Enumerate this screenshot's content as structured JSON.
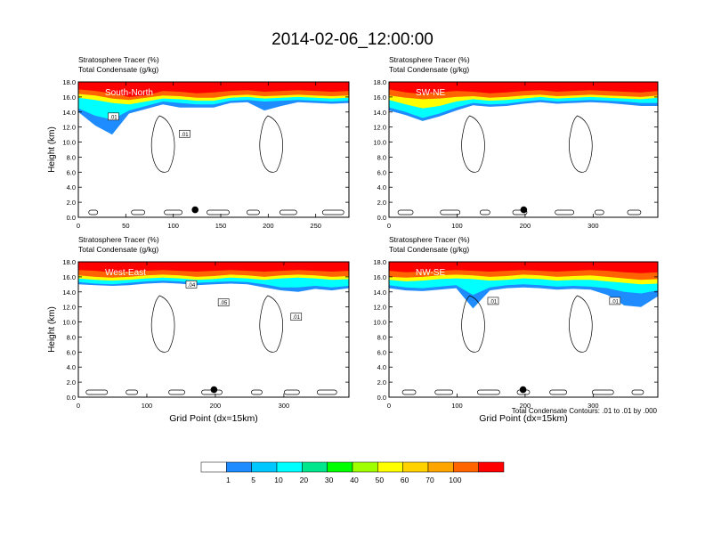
{
  "title": "2014-02-06_12:00:00",
  "subtitle_line1": "Stratosphere Tracer   (%)",
  "subtitle_line2": "Total Condensate   (g/kg)",
  "footnote": "Total Condensate Contours: .01 to .01 by .000",
  "colorbar": {
    "levels": [
      "1",
      "5",
      "10",
      "20",
      "30",
      "40",
      "50",
      "60",
      "70",
      "100"
    ],
    "colors": [
      "#ffffff",
      "#1e8cff",
      "#00c8ff",
      "#00ffff",
      "#00e68c",
      "#00ff00",
      "#a0ff00",
      "#ffff00",
      "#ffd200",
      "#ffa500",
      "#ff6400",
      "#ff0000"
    ]
  },
  "colors": {
    "fill_high": "#ff0000",
    "fill_orange": "#ff6400",
    "fill_yellow": "#ffff00",
    "fill_cyan": "#00ffff",
    "fill_blue": "#1e8cff",
    "contour": "#000000"
  },
  "chart_data": [
    {
      "type": "heatmap",
      "label": "South-North",
      "ylabel": "Height (km)",
      "xlabel": "",
      "xlim": [
        0,
        285
      ],
      "ylim": [
        0,
        18
      ],
      "xticks": [
        0,
        50,
        100,
        150,
        200,
        250
      ],
      "yticks": [
        "0.0",
        "2.0",
        "4.0",
        "6.0",
        "8.0",
        "10.0",
        "12.0",
        "14.0",
        "16.0",
        "18.0"
      ],
      "contour_labels": [
        {
          "text": ".01",
          "x": 37,
          "y": 13.4
        },
        {
          "text": ".01",
          "x": 112,
          "y": 11.1
        }
      ],
      "marker": {
        "x": 123,
        "y": 1.0
      },
      "layers": [
        {
          "color": "#ff0000",
          "bottom": [
            17.0,
            16.8,
            16.5,
            16.0,
            16.2,
            16.8,
            16.7,
            16.5,
            16.6,
            16.8,
            16.9,
            16.7,
            16.8,
            16.9,
            16.8,
            16.7,
            16.8
          ]
        },
        {
          "color": "#ff6400",
          "bottom": [
            16.4,
            16.2,
            15.8,
            15.6,
            15.9,
            16.2,
            16.1,
            15.9,
            15.9,
            16.2,
            16.3,
            16.1,
            16.2,
            16.3,
            16.2,
            16.1,
            16.2
          ]
        },
        {
          "color": "#ffff00",
          "bottom": [
            15.9,
            15.6,
            15.2,
            15.0,
            15.4,
            15.8,
            15.7,
            15.5,
            15.5,
            15.9,
            16.0,
            15.8,
            15.9,
            16.0,
            15.9,
            15.8,
            15.9
          ]
        },
        {
          "color": "#00ffff",
          "bottom": [
            14.5,
            13.5,
            13.0,
            14.2,
            14.8,
            15.4,
            15.2,
            15.0,
            15.0,
            15.5,
            15.6,
            15.4,
            15.5,
            15.6,
            15.5,
            15.4,
            15.5
          ]
        },
        {
          "color": "#1e8cff",
          "bottom": [
            14.0,
            12.2,
            11.0,
            13.8,
            14.4,
            15.0,
            14.6,
            14.6,
            14.6,
            15.2,
            15.3,
            14.2,
            14.8,
            15.3,
            15.2,
            15.1,
            15.2
          ]
        }
      ]
    },
    {
      "type": "heatmap",
      "label": "SW-NE",
      "ylabel": "",
      "xlabel": "",
      "xlim": [
        0,
        395
      ],
      "ylim": [
        0,
        18
      ],
      "xticks": [
        0,
        100,
        200,
        300
      ],
      "yticks": [
        "0.0",
        "2.0",
        "4.0",
        "6.0",
        "8.0",
        "10.0",
        "12.0",
        "14.0",
        "16.0",
        "18.0"
      ],
      "contour_labels": [],
      "marker": {
        "x": 198,
        "y": 1.0
      },
      "layers": [
        {
          "color": "#ff0000",
          "bottom": [
            17.0,
            16.6,
            16.4,
            16.6,
            16.8,
            16.7,
            16.5,
            16.6,
            16.8,
            16.9,
            16.7,
            16.8,
            16.9,
            16.8,
            16.7,
            16.6,
            16.8
          ]
        },
        {
          "color": "#ff6400",
          "bottom": [
            16.2,
            15.9,
            15.7,
            15.8,
            16.0,
            16.1,
            15.9,
            16.0,
            16.2,
            16.3,
            16.1,
            16.2,
            16.3,
            16.2,
            16.1,
            16.0,
            16.2
          ]
        },
        {
          "color": "#ffff00",
          "bottom": [
            15.6,
            15.0,
            14.5,
            14.8,
            15.4,
            15.7,
            15.5,
            15.6,
            15.8,
            16.0,
            15.8,
            15.9,
            16.0,
            15.9,
            15.8,
            15.7,
            15.9
          ]
        },
        {
          "color": "#00ffff",
          "bottom": [
            14.6,
            14.0,
            13.2,
            13.8,
            14.6,
            15.2,
            15.0,
            15.1,
            15.4,
            15.6,
            15.4,
            15.5,
            15.6,
            15.5,
            15.4,
            15.2,
            15.2
          ]
        },
        {
          "color": "#1e8cff",
          "bottom": [
            14.2,
            13.6,
            12.8,
            13.4,
            14.2,
            14.9,
            14.7,
            14.8,
            15.1,
            15.3,
            15.1,
            15.2,
            15.3,
            15.2,
            15.0,
            14.8,
            14.8
          ]
        }
      ]
    },
    {
      "type": "heatmap",
      "label": "West-East",
      "ylabel": "Height (km)",
      "xlabel": "Grid Point (dx=15km)",
      "xlim": [
        0,
        395
      ],
      "ylim": [
        0,
        18
      ],
      "xticks": [
        0,
        100,
        200,
        300
      ],
      "yticks": [
        "0.0",
        "2.0",
        "4.0",
        "6.0",
        "8.0",
        "10.0",
        "12.0",
        "14.0",
        "16.0",
        "18.0"
      ],
      "contour_labels": [
        {
          "text": ".04",
          "x": 165,
          "y": 15.0
        },
        {
          "text": ".05",
          "x": 212,
          "y": 12.6
        },
        {
          "text": ".01",
          "x": 318,
          "y": 10.7
        }
      ],
      "marker": {
        "x": 198,
        "y": 1.0
      },
      "layers": [
        {
          "color": "#ff0000",
          "bottom": [
            16.9,
            16.8,
            16.6,
            16.7,
            16.8,
            16.9,
            16.8,
            16.7,
            16.8,
            16.9,
            16.8,
            16.7,
            16.8,
            16.9,
            16.8,
            16.7,
            16.8
          ]
        },
        {
          "color": "#ff6400",
          "bottom": [
            16.2,
            16.0,
            15.9,
            16.0,
            16.2,
            16.3,
            16.2,
            16.0,
            16.1,
            16.3,
            16.2,
            16.0,
            16.2,
            16.3,
            16.2,
            16.0,
            16.1
          ]
        },
        {
          "color": "#ffff00",
          "bottom": [
            15.8,
            15.6,
            15.5,
            15.6,
            15.8,
            15.9,
            15.8,
            15.6,
            15.7,
            15.9,
            15.8,
            15.6,
            15.8,
            15.9,
            15.8,
            15.6,
            15.7
          ]
        },
        {
          "color": "#00ffff",
          "bottom": [
            15.3,
            15.1,
            15.0,
            15.2,
            15.4,
            15.5,
            15.4,
            15.2,
            15.3,
            15.4,
            15.3,
            15.0,
            14.6,
            14.6,
            14.8,
            14.6,
            14.8
          ]
        },
        {
          "color": "#1e8cff",
          "bottom": [
            15.0,
            14.9,
            14.8,
            14.9,
            15.1,
            15.2,
            15.1,
            14.9,
            15.0,
            15.1,
            15.0,
            14.6,
            14.2,
            14.0,
            14.4,
            14.2,
            14.5
          ]
        }
      ]
    },
    {
      "type": "heatmap",
      "label": "NW-SE",
      "ylabel": "",
      "xlabel": "Grid Point (dx=15km)",
      "xlim": [
        0,
        395
      ],
      "ylim": [
        0,
        18
      ],
      "xticks": [
        0,
        100,
        200,
        300
      ],
      "yticks": [
        "0.0",
        "2.0",
        "4.0",
        "6.0",
        "8.0",
        "10.0",
        "12.0",
        "14.0",
        "16.0",
        "18.0"
      ],
      "contour_labels": [
        {
          "text": ".01",
          "x": 153,
          "y": 12.8
        },
        {
          "text": ".01",
          "x": 332,
          "y": 12.8
        }
      ],
      "marker": {
        "x": 197,
        "y": 1.0
      },
      "layers": [
        {
          "color": "#ff0000",
          "bottom": [
            16.8,
            16.6,
            16.7,
            16.8,
            16.9,
            16.8,
            16.7,
            16.8,
            16.9,
            16.8,
            16.7,
            16.8,
            16.9,
            16.8,
            16.6,
            16.5,
            16.6
          ]
        },
        {
          "color": "#ff6400",
          "bottom": [
            16.0,
            15.9,
            16.0,
            16.2,
            16.3,
            16.2,
            16.0,
            16.1,
            16.3,
            16.2,
            16.0,
            16.1,
            16.2,
            16.0,
            15.8,
            15.6,
            15.7
          ]
        },
        {
          "color": "#ffff00",
          "bottom": [
            15.6,
            15.4,
            15.5,
            15.7,
            15.8,
            15.7,
            15.5,
            15.6,
            15.8,
            15.7,
            15.5,
            15.6,
            15.6,
            15.4,
            15.2,
            15.0,
            15.1
          ]
        },
        {
          "color": "#00ffff",
          "bottom": [
            14.9,
            14.6,
            14.5,
            14.7,
            14.9,
            13.6,
            14.6,
            14.9,
            15.0,
            14.9,
            14.7,
            14.8,
            14.7,
            14.5,
            14.0,
            13.8,
            14.2
          ]
        },
        {
          "color": "#1e8cff",
          "bottom": [
            14.5,
            14.2,
            14.1,
            14.3,
            14.5,
            11.8,
            14.2,
            14.5,
            14.6,
            14.5,
            14.3,
            14.4,
            14.3,
            13.6,
            12.2,
            12.0,
            13.4
          ]
        }
      ]
    }
  ]
}
